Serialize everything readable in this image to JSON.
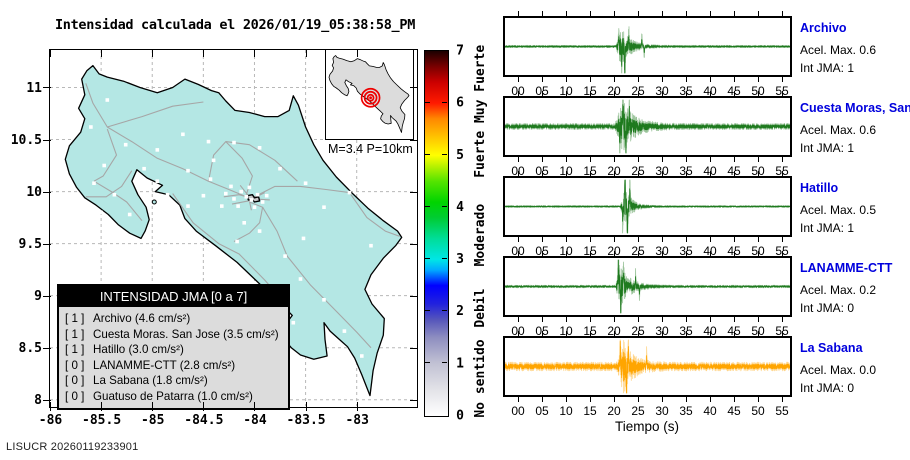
{
  "title": "Intensidad calculada el 2026/01/19_05:38:58_PM",
  "watermark": "LISUCR 20260119233901",
  "map": {
    "land_color": "#b4e7e4",
    "road_color": "#a6a6a6",
    "grid_color": "#b8b8b8",
    "station_marker_color": "#ffffff",
    "x_ticks": [
      "-86",
      "-85.5",
      "-85",
      "-84.5",
      "-84",
      "-83.5",
      "-83"
    ],
    "y_ticks": [
      "8",
      "8.5",
      "9",
      "9.5",
      "10",
      "10.5",
      "11"
    ],
    "coastline": [
      [
        -85.69,
        11.08
      ],
      [
        -85.64,
        11.16
      ],
      [
        -85.58,
        11.21
      ],
      [
        -85.52,
        11.13
      ],
      [
        -85.44,
        11.1
      ],
      [
        -85.28,
        11.06
      ],
      [
        -85.12,
        11.0
      ],
      [
        -84.95,
        10.95
      ],
      [
        -84.8,
        11.0
      ],
      [
        -84.68,
        11.08
      ],
      [
        -84.55,
        11.03
      ],
      [
        -84.42,
        10.97
      ],
      [
        -84.35,
        10.95
      ],
      [
        -84.28,
        10.87
      ],
      [
        -84.19,
        10.78
      ],
      [
        -84.05,
        10.76
      ],
      [
        -83.9,
        10.72
      ],
      [
        -83.77,
        10.72
      ],
      [
        -83.66,
        10.78
      ],
      [
        -83.62,
        10.92
      ],
      [
        -83.57,
        10.83
      ],
      [
        -83.5,
        10.62
      ],
      [
        -83.42,
        10.45
      ],
      [
        -83.33,
        10.3
      ],
      [
        -83.2,
        10.14
      ],
      [
        -83.05,
        9.99
      ],
      [
        -82.89,
        9.84
      ],
      [
        -82.74,
        9.72
      ],
      [
        -82.6,
        9.62
      ],
      [
        -82.56,
        9.56
      ],
      [
        -82.62,
        9.48
      ],
      [
        -82.74,
        9.36
      ],
      [
        -82.86,
        9.2
      ],
      [
        -82.92,
        9.06
      ],
      [
        -82.85,
        8.92
      ],
      [
        -82.73,
        8.78
      ],
      [
        -82.74,
        8.62
      ],
      [
        -82.8,
        8.45
      ],
      [
        -82.84,
        8.28
      ],
      [
        -82.87,
        8.04
      ],
      [
        -82.95,
        8.24
      ],
      [
        -83.02,
        8.4
      ],
      [
        -83.09,
        8.51
      ],
      [
        -83.17,
        8.58
      ],
      [
        -83.26,
        8.66
      ],
      [
        -83.32,
        8.74
      ],
      [
        -83.31,
        8.58
      ],
      [
        -83.29,
        8.42
      ],
      [
        -83.42,
        8.39
      ],
      [
        -83.55,
        8.43
      ],
      [
        -83.64,
        8.5
      ],
      [
        -83.73,
        8.6
      ],
      [
        -83.7,
        8.72
      ],
      [
        -83.63,
        8.81
      ],
      [
        -83.72,
        8.9
      ],
      [
        -83.85,
        9.02
      ],
      [
        -84.0,
        9.16
      ],
      [
        -84.17,
        9.32
      ],
      [
        -84.38,
        9.48
      ],
      [
        -84.57,
        9.62
      ],
      [
        -84.68,
        9.74
      ],
      [
        -84.73,
        9.87
      ],
      [
        -84.84,
        9.97
      ],
      [
        -84.97,
        10.0
      ],
      [
        -84.9,
        10.06
      ],
      [
        -85.05,
        10.13
      ],
      [
        -85.15,
        10.21
      ],
      [
        -85.2,
        10.1
      ],
      [
        -85.14,
        9.97
      ],
      [
        -85.06,
        9.85
      ],
      [
        -85.03,
        9.73
      ],
      [
        -85.07,
        9.62
      ],
      [
        -85.11,
        9.55
      ],
      [
        -85.22,
        9.6
      ],
      [
        -85.33,
        9.68
      ],
      [
        -85.43,
        9.78
      ],
      [
        -85.55,
        9.87
      ],
      [
        -85.66,
        9.94
      ],
      [
        -85.74,
        10.04
      ],
      [
        -85.81,
        10.17
      ],
      [
        -85.85,
        10.31
      ],
      [
        -85.81,
        10.44
      ],
      [
        -85.7,
        10.57
      ],
      [
        -85.66,
        10.7
      ],
      [
        -85.72,
        10.8
      ],
      [
        -85.66,
        10.93
      ]
    ],
    "island_lonlat": [
      -84.98,
      9.9
    ],
    "city_polygon": [
      [
        -84.07,
        9.96
      ],
      [
        -84.02,
        9.97
      ],
      [
        -84.0,
        9.94
      ],
      [
        -83.96,
        9.95
      ],
      [
        -83.95,
        9.91
      ],
      [
        -84.0,
        9.9
      ],
      [
        -84.02,
        9.92
      ],
      [
        -84.06,
        9.92
      ]
    ],
    "roads": [
      [
        [
          -84.08,
          9.95
        ],
        [
          -84.25,
          10.02
        ],
        [
          -84.45,
          10.1
        ],
        [
          -84.7,
          10.22
        ],
        [
          -84.95,
          10.32
        ],
        [
          -85.2,
          10.48
        ],
        [
          -85.44,
          10.62
        ],
        [
          -85.58,
          10.85
        ],
        [
          -85.65,
          11.04
        ]
      ],
      [
        [
          -84.0,
          9.95
        ],
        [
          -83.8,
          10.05
        ],
        [
          -83.55,
          10.05
        ],
        [
          -83.3,
          10.02
        ],
        [
          -83.07,
          9.99
        ]
      ],
      [
        [
          -84.05,
          9.9
        ],
        [
          -83.92,
          9.85
        ],
        [
          -83.78,
          9.62
        ],
        [
          -83.68,
          9.38
        ],
        [
          -83.45,
          9.1
        ],
        [
          -83.2,
          8.85
        ],
        [
          -83.0,
          8.65
        ],
        [
          -82.86,
          8.5
        ]
      ],
      [
        [
          -84.8,
          9.98
        ],
        [
          -84.6,
          9.7
        ],
        [
          -84.35,
          9.5
        ],
        [
          -84.15,
          9.4
        ],
        [
          -83.9,
          9.15
        ],
        [
          -83.66,
          8.88
        ]
      ],
      [
        [
          -85.57,
          10.1
        ],
        [
          -85.4,
          10.0
        ],
        [
          -85.25,
          9.9
        ],
        [
          -85.1,
          9.72
        ]
      ],
      [
        [
          -85.44,
          10.6
        ],
        [
          -85.35,
          10.35
        ],
        [
          -85.48,
          10.15
        ],
        [
          -85.57,
          10.1
        ]
      ],
      [
        [
          -84.45,
          10.1
        ],
        [
          -84.4,
          10.35
        ],
        [
          -84.28,
          10.48
        ],
        [
          -84.05,
          10.45
        ],
        [
          -83.8,
          10.3
        ],
        [
          -83.58,
          10.1
        ]
      ],
      [
        [
          -84.08,
          9.97
        ],
        [
          -84.02,
          10.15
        ],
        [
          -84.12,
          10.32
        ],
        [
          -84.28,
          10.48
        ]
      ],
      [
        [
          -84.3,
          9.95
        ],
        [
          -84.15,
          9.97
        ],
        [
          -84.0,
          9.93
        ],
        [
          -83.85,
          9.92
        ]
      ],
      [
        [
          -84.14,
          10.06
        ],
        [
          -84.06,
          9.96
        ],
        [
          -84.03,
          9.82
        ]
      ],
      [
        [
          -84.22,
          9.88
        ],
        [
          -84.06,
          9.91
        ],
        [
          -83.9,
          9.99
        ]
      ],
      [
        [
          -83.07,
          9.99
        ],
        [
          -82.9,
          9.75
        ],
        [
          -82.72,
          9.62
        ],
        [
          -82.58,
          9.57
        ]
      ],
      [
        [
          -85.44,
          10.62
        ],
        [
          -85.1,
          10.72
        ],
        [
          -84.8,
          10.82
        ],
        [
          -84.5,
          10.86
        ]
      ],
      [
        [
          -85.65,
          9.95
        ],
        [
          -85.45,
          9.95
        ],
        [
          -85.3,
          10.05
        ],
        [
          -85.2,
          10.2
        ]
      ],
      [
        [
          -83.92,
          9.85
        ],
        [
          -83.95,
          9.7
        ],
        [
          -84.05,
          9.6
        ],
        [
          -84.2,
          9.52
        ]
      ]
    ],
    "stations_lonlat": [
      [
        -85.44,
        10.88
      ],
      [
        -85.6,
        10.62
      ],
      [
        -85.26,
        10.45
      ],
      [
        -85.47,
        10.25
      ],
      [
        -85.57,
        10.08
      ],
      [
        -85.37,
        9.97
      ],
      [
        -85.5,
        9.8
      ],
      [
        -85.22,
        9.78
      ],
      [
        -84.95,
        10.4
      ],
      [
        -85.08,
        10.22
      ],
      [
        -84.7,
        10.55
      ],
      [
        -84.45,
        10.48
      ],
      [
        -84.2,
        10.47
      ],
      [
        -83.95,
        10.42
      ],
      [
        -84.65,
        10.2
      ],
      [
        -84.43,
        10.12
      ],
      [
        -83.75,
        10.22
      ],
      [
        -83.5,
        10.08
      ],
      [
        -83.07,
        9.99
      ],
      [
        -83.32,
        9.85
      ],
      [
        -84.85,
        9.97
      ],
      [
        -84.65,
        9.86
      ],
      [
        -84.5,
        9.96
      ],
      [
        -84.28,
        9.98
      ],
      [
        -84.2,
        9.93
      ],
      [
        -84.13,
        10.0
      ],
      [
        -84.08,
        9.95
      ],
      [
        -84.03,
        9.92
      ],
      [
        -83.97,
        9.97
      ],
      [
        -84.05,
        10.04
      ],
      [
        -83.92,
        9.9
      ],
      [
        -84.16,
        9.86
      ],
      [
        -84.0,
        9.85
      ],
      [
        -83.88,
        9.96
      ],
      [
        -84.23,
        10.05
      ],
      [
        -84.32,
        9.86
      ],
      [
        -84.1,
        9.7
      ],
      [
        -83.95,
        9.62
      ],
      [
        -84.17,
        9.52
      ],
      [
        -83.7,
        9.38
      ],
      [
        -83.55,
        9.16
      ],
      [
        -83.32,
        8.96
      ],
      [
        -83.62,
        8.74
      ],
      [
        -83.12,
        8.66
      ],
      [
        -82.95,
        8.42
      ],
      [
        -83.52,
        9.55
      ],
      [
        -82.86,
        9.48
      ],
      [
        -82.66,
        9.92
      ],
      [
        -84.4,
        10.3
      ],
      [
        -84.95,
        10.1
      ]
    ]
  },
  "inset": {
    "label": "M=3.4 P=10km",
    "epicenter_lonlat": [
      -84.14,
      9.47
    ],
    "ring_color": "#ee0000",
    "land_color": "#dcdcdc"
  },
  "legend": {
    "title": "INTENSIDAD JMA [0 a 7]",
    "items": [
      {
        "bracket": "[ 1 ]",
        "label": "Archivo (4.6 cm/s²)"
      },
      {
        "bracket": "[ 1 ]",
        "label": "Cuesta Moras. San Jose (3.5 cm/s²)"
      },
      {
        "bracket": "[ 1 ]",
        "label": "Hatillo (3.0 cm/s²)"
      },
      {
        "bracket": "[ 0 ]",
        "label": "LANAMME-CTT (2.8 cm/s²)"
      },
      {
        "bracket": "[ 0 ]",
        "label": "La Sabana (1.8 cm/s²)"
      },
      {
        "bracket": "[ 0 ]",
        "label": "Guatuso de Patarra (1.0 cm/s²)"
      }
    ]
  },
  "colorbar": {
    "ticks": [
      "0",
      "1",
      "2",
      "3",
      "4",
      "5",
      "6",
      "7"
    ],
    "category_labels": [
      {
        "text": "No sentido",
        "center_value": 0.7
      },
      {
        "text": "Debil",
        "center_value": 2.05
      },
      {
        "text": "Moderado",
        "center_value": 3.45
      },
      {
        "text": "Fuerte",
        "center_value": 5.0
      },
      {
        "text": "Muy Fuerte",
        "center_value": 6.35
      }
    ],
    "gradient_stops": [
      {
        "v": 0.0,
        "c": "#ffffff"
      },
      {
        "v": 0.5,
        "c": "#e3e3e8"
      },
      {
        "v": 1.0,
        "c": "#c2c2d4"
      },
      {
        "v": 1.5,
        "c": "#8f8fc0"
      },
      {
        "v": 1.85,
        "c": "#5555bb"
      },
      {
        "v": 2.15,
        "c": "#2222dd"
      },
      {
        "v": 2.5,
        "c": "#0000ff"
      },
      {
        "v": 2.8,
        "c": "#00aaff"
      },
      {
        "v": 3.0,
        "c": "#00e6e6"
      },
      {
        "v": 3.4,
        "c": "#00dd99"
      },
      {
        "v": 3.8,
        "c": "#00cc33"
      },
      {
        "v": 4.1,
        "c": "#00d400"
      },
      {
        "v": 4.5,
        "c": "#55e400"
      },
      {
        "v": 4.8,
        "c": "#bbf200"
      },
      {
        "v": 5.0,
        "c": "#ffff00"
      },
      {
        "v": 5.4,
        "c": "#ffbb00"
      },
      {
        "v": 5.7,
        "c": "#ff8800"
      },
      {
        "v": 6.0,
        "c": "#ff1a00"
      },
      {
        "v": 6.4,
        "c": "#cc0000"
      },
      {
        "v": 6.7,
        "c": "#7a0000"
      },
      {
        "v": 7.0,
        "c": "#1c0000"
      }
    ]
  },
  "seismograms": {
    "xlabel": "Tiempo (s)",
    "time_ticks": [
      "00",
      "05",
      "10",
      "15",
      "20",
      "25",
      "30",
      "35",
      "40",
      "45",
      "50",
      "55"
    ],
    "label_color": "#0000dd",
    "stations": [
      {
        "name": "Archivo",
        "accel_label": "Acel. Max. 0.6",
        "jma_label": "Int JMA: 1",
        "color": "#1e7a1e",
        "seed": 11,
        "floor": 0.045,
        "burst_start": 20.2,
        "rise": 1.2,
        "peak": 0.72,
        "decay": 2.0,
        "spikes": [
          [
            21.0,
            0.9
          ],
          [
            21.6,
            -0.95
          ],
          [
            22.25,
            -1.9
          ],
          [
            23.1,
            0.7
          ],
          [
            25.8,
            0.45
          ],
          [
            26.3,
            -0.4
          ]
        ]
      },
      {
        "name": "Cuesta Moras, San Jose",
        "accel_label": "Acel. Max. 0.6",
        "jma_label": "Int JMA: 1",
        "color": "#1e7a1e",
        "seed": 22,
        "floor": 0.12,
        "burst_start": 20.0,
        "rise": 1.7,
        "peak": 0.95,
        "decay": 2.4,
        "spikes": [
          [
            21.9,
            1.8
          ],
          [
            21.2,
            -0.9
          ],
          [
            22.5,
            -1.3
          ],
          [
            23.2,
            1.0
          ]
        ]
      },
      {
        "name": "Hatillo",
        "accel_label": "Acel. Max. 0.5",
        "jma_label": "Int JMA: 1",
        "color": "#1e7a1e",
        "seed": 33,
        "floor": 0.035,
        "burst_start": 21.2,
        "rise": 1.0,
        "peak": 0.8,
        "decay": 1.4,
        "spikes": [
          [
            22.3,
            1.9
          ],
          [
            22.8,
            -1.9
          ],
          [
            21.8,
            -0.8
          ],
          [
            23.3,
            1.1
          ]
        ]
      },
      {
        "name": "LANAMME-CTT",
        "accel_label": "Acel. Max. 0.2",
        "jma_label": "Int JMA: 0",
        "color": "#1e7a1e",
        "seed": 44,
        "floor": 0.05,
        "burst_start": 20.3,
        "rise": 0.7,
        "peak": 0.85,
        "decay": 2.2,
        "spikes": [
          [
            20.9,
            1.8
          ],
          [
            21.4,
            -1.5
          ],
          [
            22.0,
            0.9
          ],
          [
            24.5,
            0.5
          ],
          [
            25.3,
            -0.5
          ]
        ]
      },
      {
        "name": "La Sabana",
        "accel_label": "Acel. Max. 0.0",
        "jma_label": "Int JMA: 0",
        "color": "#ffa500",
        "seed": 55,
        "floor": 0.17,
        "burst_start": 20.4,
        "rise": 1.5,
        "peak": 0.95,
        "decay": 2.0,
        "spikes": [
          [
            21.3,
            1.5
          ],
          [
            22.6,
            -1.9
          ],
          [
            23.0,
            1.0
          ],
          [
            26.8,
            0.6
          ]
        ]
      }
    ]
  },
  "chart_data": [
    {
      "type": "heatmap",
      "subtype": "intensity-map",
      "title": "Intensidad calculada el 2026/01/19_05:38:58_PM",
      "region": "Costa Rica",
      "x_ticks_lon": [
        -86,
        -85.5,
        -85,
        -84.5,
        -84,
        -83.5,
        -83
      ],
      "y_ticks_lat": [
        8,
        8.5,
        9,
        9.5,
        10,
        10.5,
        11
      ],
      "colorbar": {
        "scale_name": "INTENSIDAD JMA [0 a 7]",
        "range": [
          0,
          7
        ],
        "categories": [
          "No sentido",
          "Debil",
          "Moderado",
          "Fuerte",
          "Muy Fuerte"
        ]
      },
      "event": {
        "magnitude_label": "M=3.4",
        "depth_label": "P=10km"
      },
      "stations": [
        {
          "name": "Archivo",
          "intensity_jma": 1,
          "accel_cm_s2": 4.6
        },
        {
          "name": "Cuesta Moras. San Jose",
          "intensity_jma": 1,
          "accel_cm_s2": 3.5
        },
        {
          "name": "Hatillo",
          "intensity_jma": 1,
          "accel_cm_s2": 3.0
        },
        {
          "name": "LANAMME-CTT",
          "intensity_jma": 0,
          "accel_cm_s2": 2.8
        },
        {
          "name": "La Sabana",
          "intensity_jma": 0,
          "accel_cm_s2": 1.8
        },
        {
          "name": "Guatuso de Patarra",
          "intensity_jma": 0,
          "accel_cm_s2": 1.0
        }
      ]
    },
    {
      "type": "line",
      "subtype": "seismogram-traces",
      "xlabel": "Tiempo (s)",
      "x_ticks": [
        "00",
        "05",
        "10",
        "15",
        "20",
        "25",
        "30",
        "35",
        "40",
        "45",
        "50",
        "55"
      ],
      "x_range_s": [
        0,
        55
      ],
      "series": [
        {
          "name": "Archivo",
          "acel_max": 0.6,
          "int_jma": 1,
          "event_window_s": [
            20,
            30
          ]
        },
        {
          "name": "Cuesta Moras, San Jose",
          "acel_max": 0.6,
          "int_jma": 1,
          "event_window_s": [
            20,
            30
          ]
        },
        {
          "name": "Hatillo",
          "acel_max": 0.5,
          "int_jma": 1,
          "event_window_s": [
            21,
            28
          ]
        },
        {
          "name": "LANAMME-CTT",
          "acel_max": 0.2,
          "int_jma": 0,
          "event_window_s": [
            20,
            29
          ]
        },
        {
          "name": "La Sabana",
          "acel_max": 0.0,
          "int_jma": 0,
          "event_window_s": [
            20,
            29
          ]
        }
      ]
    }
  ]
}
